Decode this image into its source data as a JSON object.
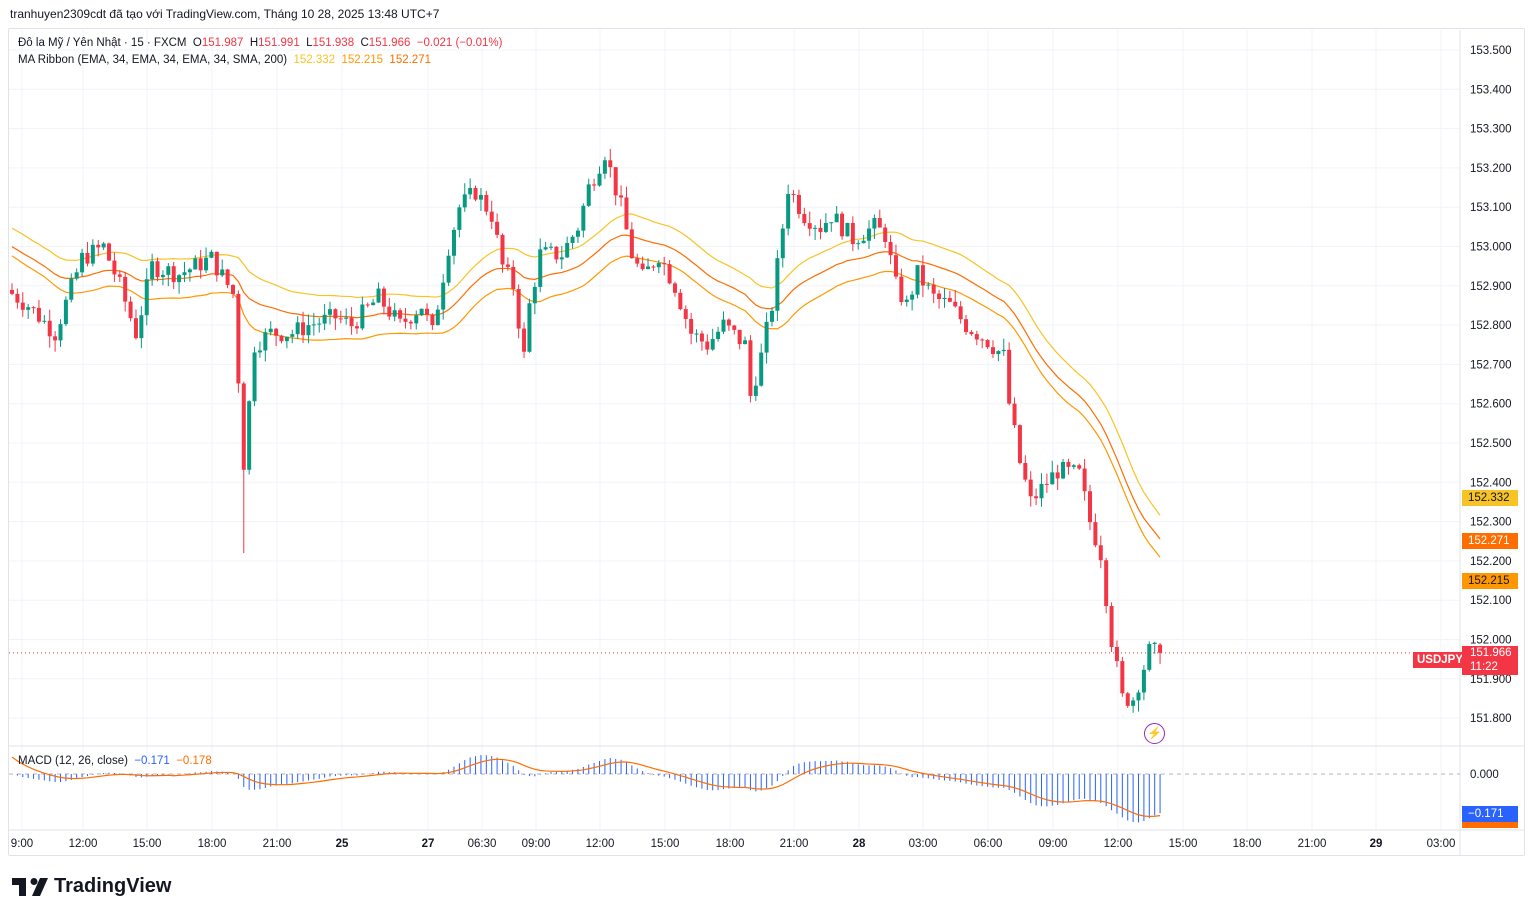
{
  "caption": "tranhuyen2309cdt đã tạo với TradingView.com, Tháng 10 28, 2025 13:48 UTC+7",
  "legend": {
    "symbol": "Đô la Mỹ / Yên Nhật · 15 · FXCM",
    "o_label": "O",
    "o": "151.987",
    "h_label": "H",
    "h": "151.991",
    "l_label": "L",
    "l": "151.938",
    "c_label": "C",
    "c": "151.966",
    "change": "−0.021 (−0.01%)",
    "ma_title": "MA Ribbon (EMA, 34, EMA, 34, EMA, 34, SMA, 200)",
    "ma1": "152.332",
    "ma2": "152.215",
    "ma3": "152.271"
  },
  "macd": {
    "title": "MACD (12, 26, close)",
    "macd": "−0.171",
    "signal": "−0.178",
    "zero": "0.000"
  },
  "price_axis": [
    "153.500",
    "153.400",
    "153.300",
    "153.200",
    "153.100",
    "153.000",
    "152.900",
    "152.800",
    "152.700",
    "152.600",
    "152.500",
    "152.400",
    "152.300",
    "152.200",
    "152.100",
    "152.000",
    "151.900",
    "151.800"
  ],
  "badges": {
    "ma1": "152.332",
    "ma3": "152.271",
    "ma2": "152.215",
    "symbol": "USDJPY",
    "price": "151.966",
    "countdown": "11:22",
    "macd": "−0.171"
  },
  "time_axis": [
    "9:00",
    "12:00",
    "15:00",
    "18:00",
    "21:00",
    "25",
    "27",
    "06:30",
    "09:00",
    "12:00",
    "15:00",
    "18:00",
    "21:00",
    "28",
    "03:00",
    "06:00",
    "09:00",
    "12:00",
    "15:00",
    "18:00",
    "21:00",
    "29",
    "03:00"
  ],
  "colors": {
    "up": "#089981",
    "down": "#f23645",
    "ma1": "#f7c325",
    "ma2": "#ff9800",
    "ma3": "#ff6d00",
    "macd": "#2962ff",
    "signal": "#ff6d00"
  },
  "logo": "TradingView",
  "chart_data": {
    "type": "candlestick",
    "timeframe": "15",
    "close_waypoints": [
      [
        0,
        152.88
      ],
      [
        3,
        152.85
      ],
      [
        8,
        152.78
      ],
      [
        13,
        152.97
      ],
      [
        17,
        153.0
      ],
      [
        20,
        152.9
      ],
      [
        23,
        152.78
      ],
      [
        26,
        152.95
      ],
      [
        31,
        152.93
      ],
      [
        37,
        152.97
      ],
      [
        41,
        152.88
      ],
      [
        43,
        152.45
      ],
      [
        45,
        152.75
      ],
      [
        48,
        152.78
      ],
      [
        52,
        152.78
      ],
      [
        55,
        152.8
      ],
      [
        60,
        152.82
      ],
      [
        63,
        152.8
      ],
      [
        68,
        152.87
      ],
      [
        72,
        152.8
      ],
      [
        76,
        152.85
      ],
      [
        78,
        152.78
      ],
      [
        81,
        153.0
      ],
      [
        83,
        153.1
      ],
      [
        86,
        153.14
      ],
      [
        89,
        153.08
      ],
      [
        91,
        152.95
      ],
      [
        93,
        152.9
      ],
      [
        95,
        152.72
      ],
      [
        96,
        152.85
      ],
      [
        98,
        152.98
      ],
      [
        102,
        152.98
      ],
      [
        105,
        153.05
      ],
      [
        107,
        153.15
      ],
      [
        110,
        153.24
      ],
      [
        113,
        153.1
      ],
      [
        115,
        152.98
      ],
      [
        117,
        152.92
      ],
      [
        120,
        152.98
      ],
      [
        123,
        152.9
      ],
      [
        126,
        152.78
      ],
      [
        129,
        152.75
      ],
      [
        132,
        152.8
      ],
      [
        136,
        152.75
      ],
      [
        137,
        152.62
      ],
      [
        139,
        152.72
      ],
      [
        141,
        152.85
      ],
      [
        144,
        153.15
      ],
      [
        147,
        153.08
      ],
      [
        150,
        153.05
      ],
      [
        152,
        153.08
      ],
      [
        156,
        153.02
      ],
      [
        160,
        153.05
      ],
      [
        162,
        153.03
      ],
      [
        164,
        152.9
      ],
      [
        166,
        152.85
      ],
      [
        168,
        152.93
      ],
      [
        171,
        152.87
      ],
      [
        174,
        152.85
      ],
      [
        177,
        152.8
      ],
      [
        181,
        152.76
      ],
      [
        184,
        152.72
      ],
      [
        185,
        152.6
      ],
      [
        187,
        152.45
      ],
      [
        189,
        152.35
      ],
      [
        192,
        152.4
      ],
      [
        194,
        152.43
      ],
      [
        198,
        152.42
      ],
      [
        200,
        152.3
      ],
      [
        202,
        152.22
      ],
      [
        204,
        152.0
      ],
      [
        206,
        151.85
      ],
      [
        208,
        151.85
      ],
      [
        211,
        151.97
      ],
      [
        213,
        151.966
      ]
    ]
  }
}
